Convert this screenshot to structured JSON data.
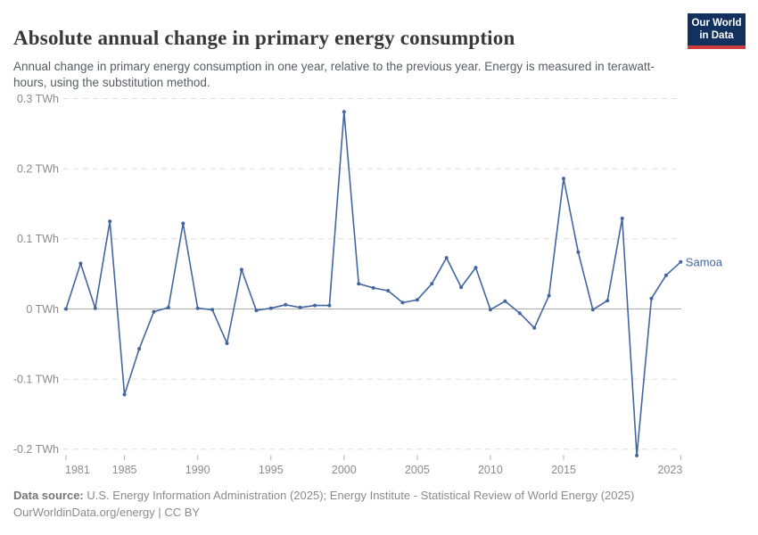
{
  "header": {
    "title": "Absolute annual change in primary energy consumption",
    "subtitle": "Annual change in primary energy consumption in one year, relative to the previous year. Energy is measured in terawatt-hours, using the substitution method.",
    "logo": {
      "line1": "Our World",
      "line2": "in Data",
      "bg_color": "#12315f",
      "accent_color": "#cc3c3b"
    }
  },
  "chart_data": {
    "type": "line",
    "title": "Absolute annual change in primary energy consumption",
    "unit": "TWh",
    "grid": true,
    "legend_position": "end-of-line",
    "ylim": [
      -0.21,
      0.3
    ],
    "xlim": [
      1981,
      2023
    ],
    "yticks": [
      {
        "value": 0.3,
        "label": "0.3 TWh"
      },
      {
        "value": 0.2,
        "label": "0.2 TWh"
      },
      {
        "value": 0.1,
        "label": "0.1 TWh"
      },
      {
        "value": 0,
        "label": "0 TWh"
      },
      {
        "value": -0.1,
        "label": "-0.1 TWh"
      },
      {
        "value": -0.2,
        "label": "-0.2 TWh"
      }
    ],
    "xticks": [
      1981,
      1985,
      1990,
      1995,
      2000,
      2005,
      2010,
      2015,
      2023
    ],
    "x": [
      1981,
      1982,
      1983,
      1984,
      1985,
      1986,
      1987,
      1988,
      1989,
      1990,
      1991,
      1992,
      1993,
      1994,
      1995,
      1996,
      1997,
      1998,
      1999,
      2000,
      2001,
      2002,
      2003,
      2004,
      2005,
      2006,
      2007,
      2008,
      2009,
      2010,
      2011,
      2012,
      2013,
      2014,
      2015,
      2016,
      2017,
      2018,
      2019,
      2020,
      2021,
      2022,
      2023
    ],
    "series": [
      {
        "name": "Samoa",
        "color": "#44669f",
        "values": [
          0,
          0.065,
          0.001,
          0.125,
          -0.122,
          -0.057,
          -0.004,
          0.002,
          0.122,
          0.001,
          -0.001,
          -0.049,
          0.056,
          -0.002,
          0.001,
          0.006,
          0.002,
          0.005,
          0.005,
          0.281,
          0.036,
          0.03,
          0.026,
          0.009,
          0.013,
          0.036,
          0.073,
          0.031,
          0.059,
          -0.001,
          0.011,
          -0.006,
          -0.027,
          0.019,
          0.186,
          0.081,
          -0.001,
          0.012,
          0.129,
          -0.209,
          0.015,
          0.048,
          0.067
        ]
      }
    ]
  },
  "footer": {
    "source_label": "Data source:",
    "source_text": "U.S. Energy Information Administration (2025); Energy Institute - Statistical Review of World Energy (2025)",
    "license_line": "OurWorldinData.org/energy | CC BY"
  }
}
